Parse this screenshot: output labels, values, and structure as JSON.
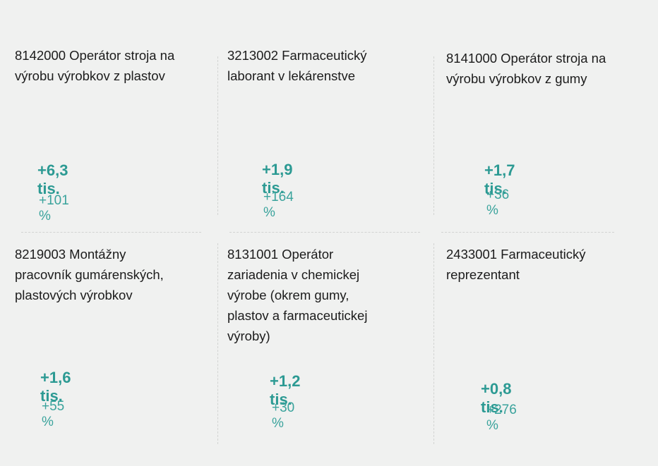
{
  "cards": [
    {
      "title": "8142000  Operátor stroja na\nvýrobu výrobkov z plastov",
      "value": "+6,3 tis.",
      "change": "+101 %"
    },
    {
      "title": "3213002  Farmaceutický\nlaborant v lekárenstve",
      "value": "+1,9 tis.",
      "change": "+164 %"
    },
    {
      "title": "8141000  Operátor stroja na\nvýrobu výrobkov z gumy",
      "value": "+1,7 tis.",
      "change": "+36 %"
    },
    {
      "title": "8219003  Montážny\npracovník gumárenských,\nplastových výrobkov",
      "value": "+1,6 tis.",
      "change": "+55 %"
    },
    {
      "title": "8131001  Operátor\nzariadenia v chemickej\nvýrobe (okrem gumy,\nplastov a farmaceutickej\nvýroby)",
      "value": "+1,2 tis.",
      "change": "+30 %"
    },
    {
      "title": "2433001  Farmaceutický\nreprezentant",
      "value": "+0,8 tis.",
      "change": "+276 %"
    }
  ]
}
